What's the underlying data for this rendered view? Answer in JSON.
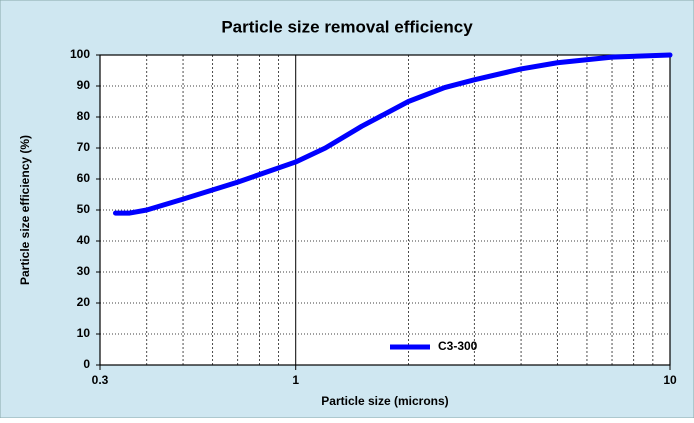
{
  "chart_data": {
    "type": "line",
    "title": "Particle size removal efficiency",
    "x_label": "Particle size (microns)",
    "y_label": "Particle size efficiency (%)",
    "log_x": true,
    "grid": true,
    "legend": "bottom",
    "xlim": [
      0.3,
      10
    ],
    "xticks": [
      0.3,
      1,
      10
    ],
    "xminorticks": [
      0.4,
      0.5,
      0.6,
      0.7,
      0.8,
      0.9,
      2,
      3,
      4,
      5,
      6,
      7,
      8,
      9
    ],
    "ylim": [
      0,
      100
    ],
    "yticks": [
      0,
      10,
      20,
      30,
      40,
      50,
      60,
      70,
      80,
      90,
      100
    ],
    "series": [
      {
        "name": "C3-300",
        "color": "#0000ff",
        "x": [
          0.33,
          0.36,
          0.4,
          0.5,
          0.7,
          1,
          1.2,
          1.5,
          2,
          2.5,
          3,
          4,
          5,
          7,
          10
        ],
        "values": [
          49,
          49,
          50,
          53.5,
          59,
          65.5,
          70,
          77,
          85,
          89.5,
          92,
          95.5,
          97.5,
          99.3,
          100
        ]
      }
    ]
  }
}
